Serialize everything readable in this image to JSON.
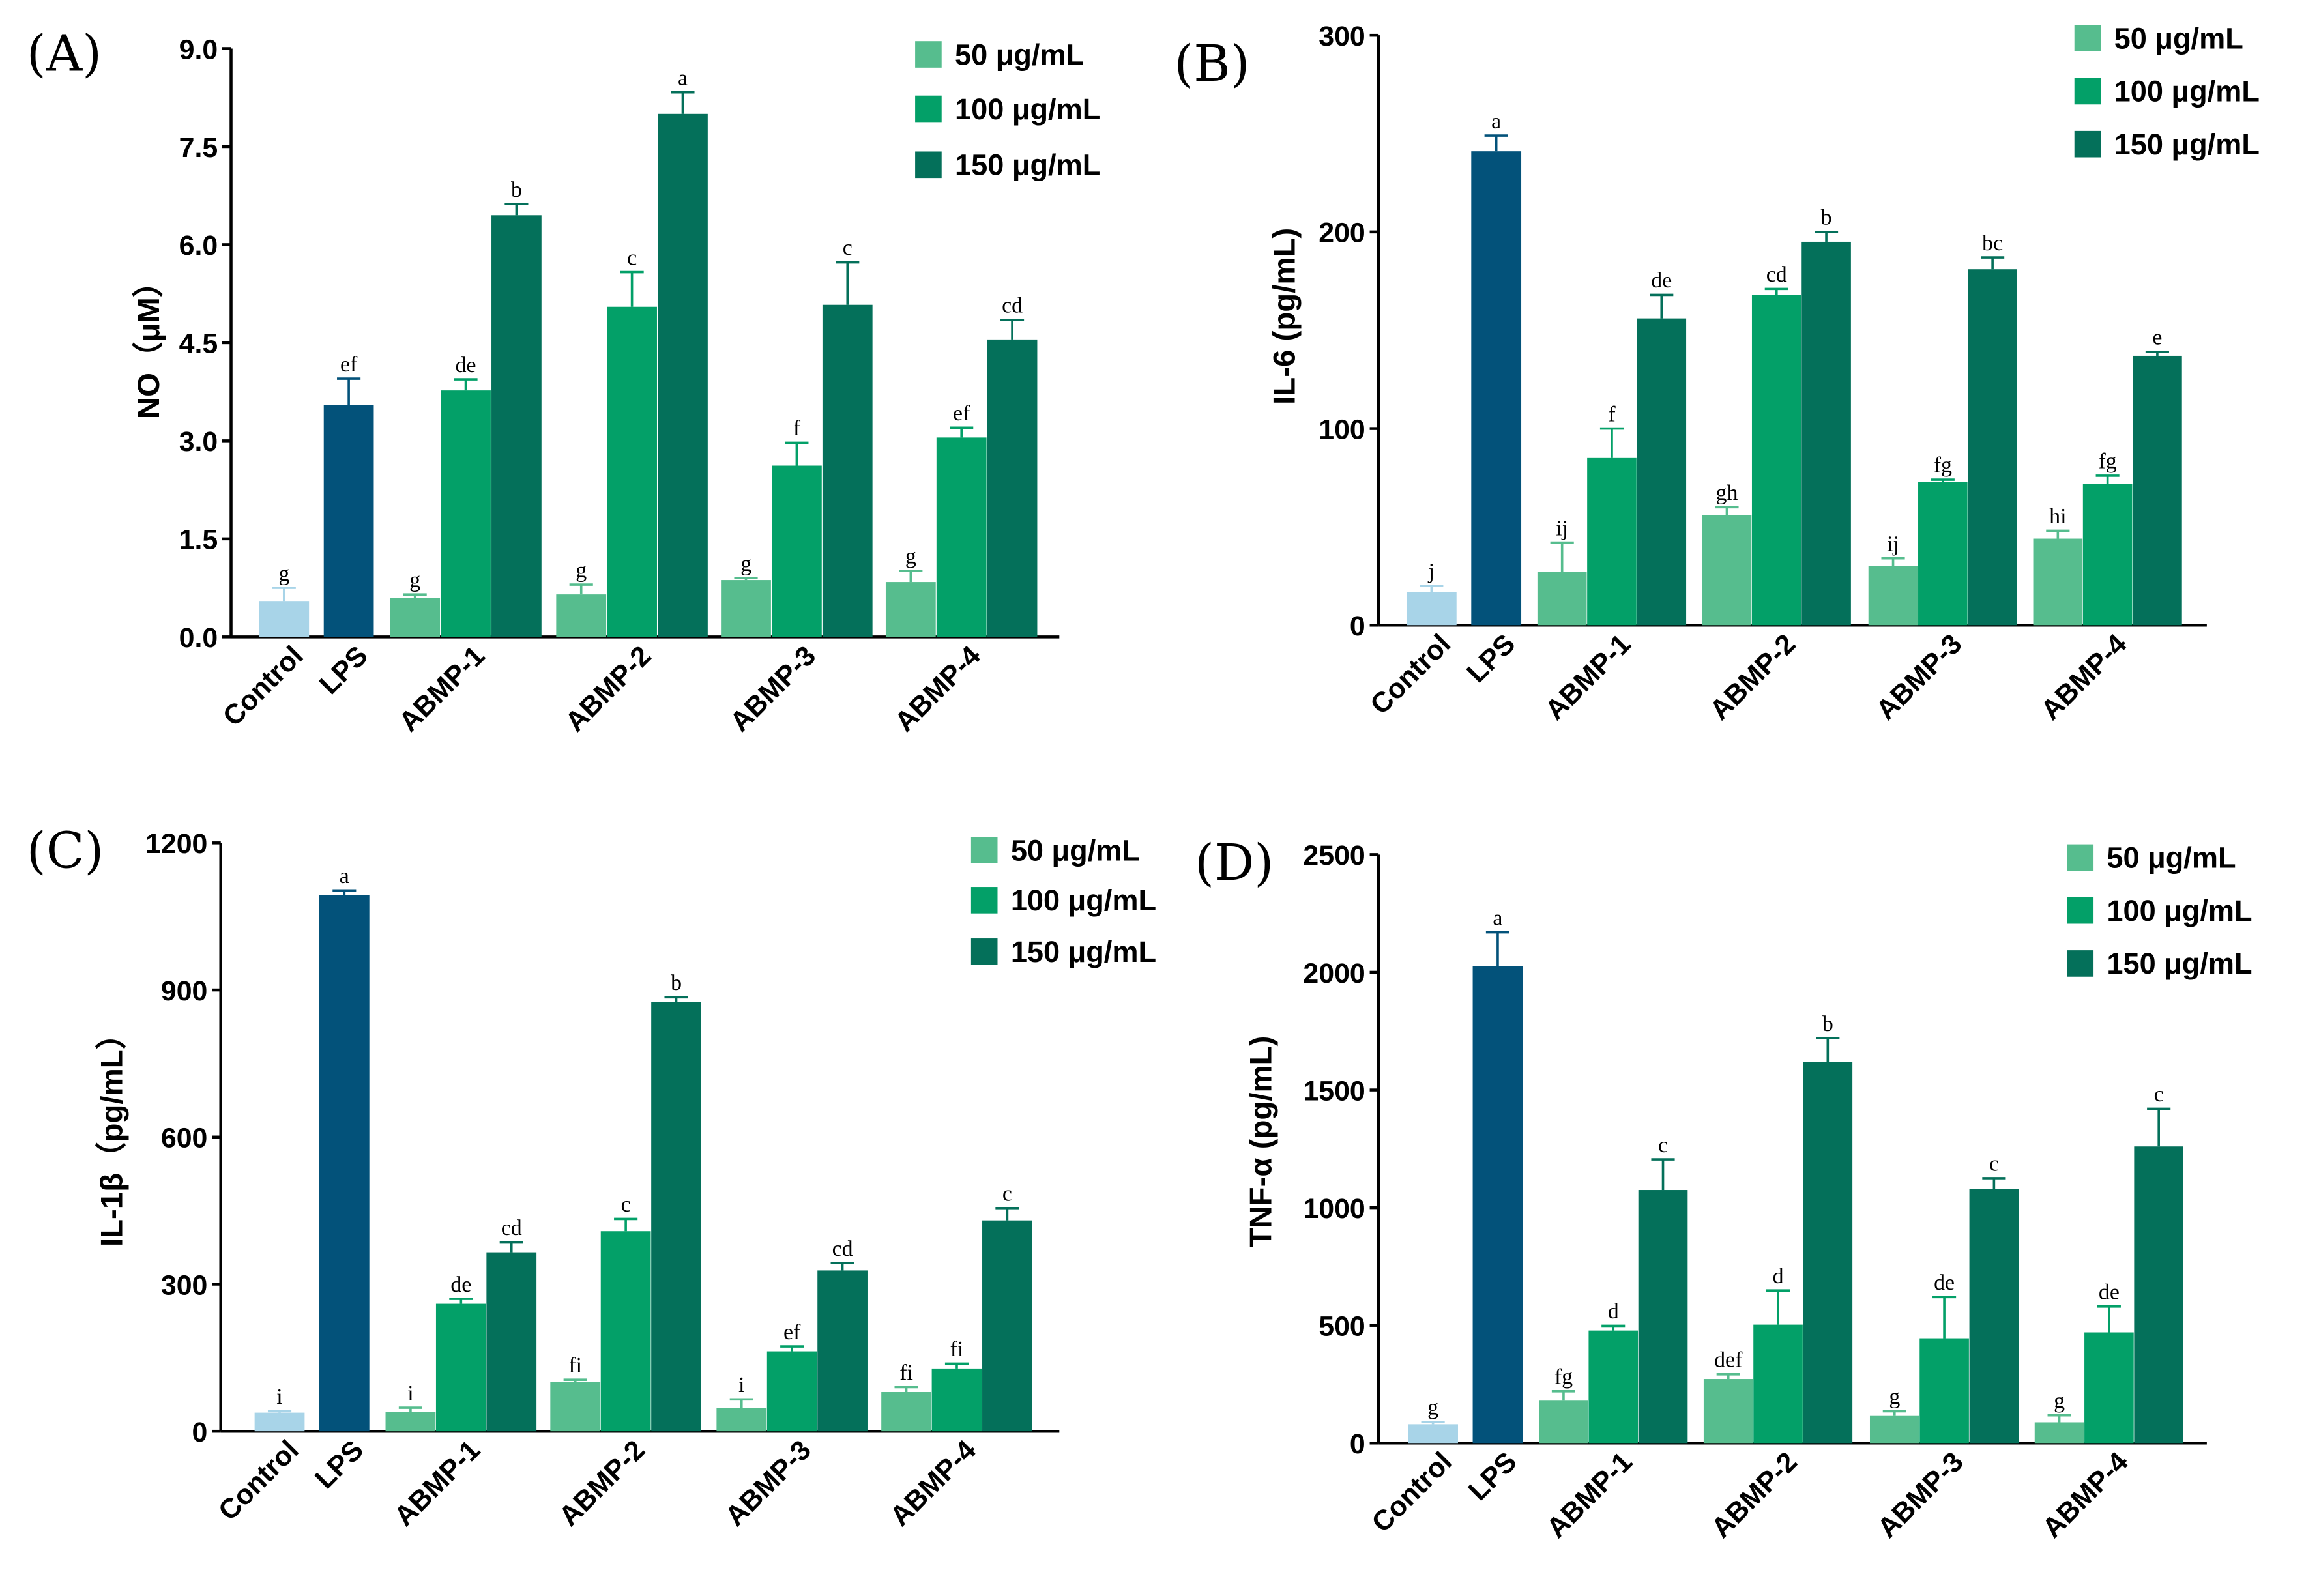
{
  "colors": {
    "control": "#a8d4e8",
    "lps": "#03527a",
    "dose_50": "#56bd8e",
    "dose_100": "#03a068",
    "dose_150": "#04705a"
  },
  "chart_data": [
    {
      "type": "bar",
      "panel": "(A)",
      "ylabel": "NO（μM）",
      "ylim": [
        0,
        9
      ],
      "yticks": [
        "0.0",
        "1.5",
        "3.0",
        "4.5",
        "6.0",
        "7.5",
        "9.0"
      ],
      "categories": [
        "Control",
        "LPS",
        "ABMP-1",
        "ABMP-2",
        "ABMP-3",
        "ABMP-4"
      ],
      "legend": [
        "50 μg/mL",
        "100 μg/mL",
        "150 μg/mL"
      ],
      "controls": [
        {
          "name": "Control",
          "value": 0.55,
          "error": 0.2,
          "sig": "g"
        },
        {
          "name": "LPS",
          "value": 3.55,
          "error": 0.4,
          "sig": "ef"
        }
      ],
      "groups": [
        {
          "name": "ABMP-1",
          "values": [
            0.6,
            3.77,
            6.45
          ],
          "errors": [
            0.05,
            0.17,
            0.17
          ],
          "sig": [
            "g",
            "de",
            "b"
          ]
        },
        {
          "name": "ABMP-2",
          "values": [
            0.65,
            5.05,
            8.0
          ],
          "errors": [
            0.15,
            0.53,
            0.33
          ],
          "sig": [
            "g",
            "c",
            "a"
          ]
        },
        {
          "name": "ABMP-3",
          "values": [
            0.87,
            2.62,
            5.08
          ],
          "errors": [
            0.03,
            0.35,
            0.65
          ],
          "sig": [
            "g",
            "f",
            "c"
          ]
        },
        {
          "name": "ABMP-4",
          "values": [
            0.84,
            3.05,
            4.55
          ],
          "errors": [
            0.17,
            0.15,
            0.3
          ],
          "sig": [
            "g",
            "ef",
            "cd"
          ]
        }
      ]
    },
    {
      "type": "bar",
      "panel": "(B)",
      "ylabel": "IL-6 (pg/mL)",
      "ylim": [
        0,
        300
      ],
      "yticks": [
        "0",
        "100",
        "200",
        "300"
      ],
      "categories": [
        "Control",
        "LPS",
        "ABMP-1",
        "ABMP-2",
        "ABMP-3",
        "ABMP-4"
      ],
      "legend": [
        "50 μg/mL",
        "100 μg/mL",
        "150 μg/mL"
      ],
      "controls": [
        {
          "name": "Control",
          "value": 17,
          "error": 3,
          "sig": "j"
        },
        {
          "name": "LPS",
          "value": 241,
          "error": 8,
          "sig": "a"
        }
      ],
      "groups": [
        {
          "name": "ABMP-1",
          "values": [
            27,
            85,
            156
          ],
          "errors": [
            15,
            15,
            12
          ],
          "sig": [
            "ij",
            "f",
            "de"
          ]
        },
        {
          "name": "ABMP-2",
          "values": [
            56,
            168,
            195
          ],
          "errors": [
            4,
            3,
            5
          ],
          "sig": [
            "gh",
            "cd",
            "b"
          ]
        },
        {
          "name": "ABMP-3",
          "values": [
            30,
            73,
            181
          ],
          "errors": [
            4,
            1,
            6
          ],
          "sig": [
            "ij",
            "fg",
            "bc"
          ]
        },
        {
          "name": "ABMP-4",
          "values": [
            44,
            72,
            137
          ],
          "errors": [
            4,
            4,
            2
          ],
          "sig": [
            "hi",
            "fg",
            "e"
          ]
        }
      ]
    },
    {
      "type": "bar",
      "panel": "(C)",
      "ylabel": "IL-1β（pg/mL）",
      "ylim": [
        0,
        1200
      ],
      "yticks": [
        "0",
        "300",
        "600",
        "900",
        "1200"
      ],
      "categories": [
        "Control",
        "LPS",
        "ABMP-1",
        "ABMP-2",
        "ABMP-3",
        "ABMP-4"
      ],
      "legend": [
        "50 μg/mL",
        "100 μg/mL",
        "150 μg/mL"
      ],
      "controls": [
        {
          "name": "Control",
          "value": 38,
          "error": 3,
          "sig": "i"
        },
        {
          "name": "LPS",
          "value": 1093,
          "error": 10,
          "sig": "a"
        }
      ],
      "groups": [
        {
          "name": "ABMP-1",
          "values": [
            40,
            260,
            365
          ],
          "errors": [
            8,
            10,
            20
          ],
          "sig": [
            "i",
            "de",
            "cd"
          ]
        },
        {
          "name": "ABMP-2",
          "values": [
            100,
            408,
            875
          ],
          "errors": [
            5,
            25,
            10
          ],
          "sig": [
            "fi",
            "c",
            "b"
          ]
        },
        {
          "name": "ABMP-3",
          "values": [
            48,
            163,
            328
          ],
          "errors": [
            17,
            10,
            15
          ],
          "sig": [
            "i",
            "ef",
            "cd"
          ]
        },
        {
          "name": "ABMP-4",
          "values": [
            80,
            128,
            430
          ],
          "errors": [
            10,
            10,
            25
          ],
          "sig": [
            "fi",
            "fi",
            "c"
          ]
        }
      ]
    },
    {
      "type": "bar",
      "panel": "(D)",
      "ylabel": "TNF-α (pg/mL)",
      "ylim": [
        0,
        2500
      ],
      "yticks": [
        "0",
        "500",
        "1000",
        "1500",
        "2000",
        "2500"
      ],
      "categories": [
        "Control",
        "LPS",
        "ABMP-1",
        "ABMP-2",
        "ABMP-3",
        "ABMP-4"
      ],
      "legend": [
        "50 μg/mL",
        "100 μg/mL",
        "150 μg/mL"
      ],
      "controls": [
        {
          "name": "Control",
          "value": 80,
          "error": 10,
          "sig": "g"
        },
        {
          "name": "LPS",
          "value": 2025,
          "error": 145,
          "sig": "a"
        }
      ],
      "groups": [
        {
          "name": "ABMP-1",
          "values": [
            180,
            478,
            1075
          ],
          "errors": [
            40,
            20,
            130
          ],
          "sig": [
            "fg",
            "d",
            "c"
          ]
        },
        {
          "name": "ABMP-2",
          "values": [
            272,
            503,
            1620
          ],
          "errors": [
            20,
            145,
            100
          ],
          "sig": [
            "def",
            "d",
            "b"
          ]
        },
        {
          "name": "ABMP-3",
          "values": [
            115,
            445,
            1080
          ],
          "errors": [
            20,
            175,
            45
          ],
          "sig": [
            "g",
            "de",
            "c"
          ]
        },
        {
          "name": "ABMP-4",
          "values": [
            88,
            470,
            1260
          ],
          "errors": [
            30,
            110,
            160
          ],
          "sig": [
            "g",
            "de",
            "c"
          ]
        }
      ]
    }
  ]
}
